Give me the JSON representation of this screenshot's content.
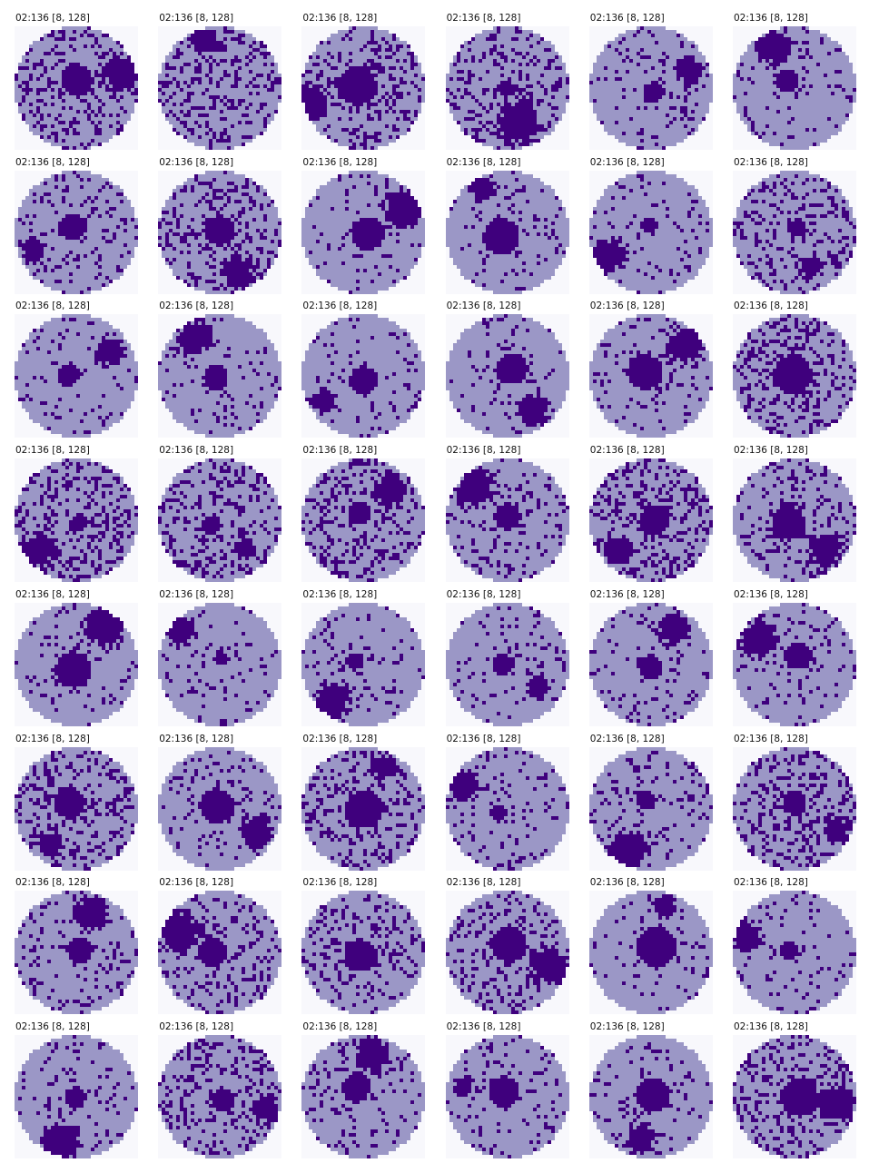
{
  "panel": {
    "rows": 8,
    "cols": 6,
    "tile_label": "02:136 [8, 128]",
    "colors": {
      "background": "#f8f8fc",
      "disc": "#9b97c6",
      "defect": "#3f007d"
    },
    "defect_patterns": [
      "scatter+center+edge-cluster",
      "scatter+edge-cluster",
      "scatter+center+edge-cluster",
      "scatter+center+edge-cluster",
      "center+edge-cluster",
      "center+edge-cluster",
      "center+edge-cluster",
      "scatter+center+edge-cluster",
      "center+edge-cluster",
      "center+edge-cluster",
      "center+edge-cluster",
      "scatter+center+edge-cluster",
      "center+edge-cluster",
      "center+edge-cluster",
      "center+edge-cluster",
      "center+edge-cluster",
      "center+edge-cluster",
      "scatter+center",
      "scatter+center+edge-cluster",
      "scatter+center+edge-cluster",
      "scatter+center+edge-cluster",
      "center+edge-cluster",
      "scatter+center+edge-cluster",
      "scatter+center+edge-cluster",
      "center+edge-cluster",
      "center+edge-cluster",
      "center+edge-cluster",
      "center+edge-cluster",
      "center+edge-cluster",
      "center+edge-cluster",
      "scatter+center+edge-cluster",
      "center+edge-cluster",
      "scatter+center+edge-cluster",
      "center+edge-cluster",
      "center+edge-cluster",
      "scatter+center+edge-cluster",
      "center+edge-cluster",
      "scatter+center+edge-cluster",
      "scatter+center",
      "scatter+center+edge-cluster",
      "center+edge-cluster",
      "center+edge-cluster",
      "center+edge-cluster",
      "scatter+center+edge-cluster",
      "center+edge-cluster",
      "center+edge-cluster",
      "center+edge-cluster",
      "scatter+center+edge-cluster"
    ]
  }
}
